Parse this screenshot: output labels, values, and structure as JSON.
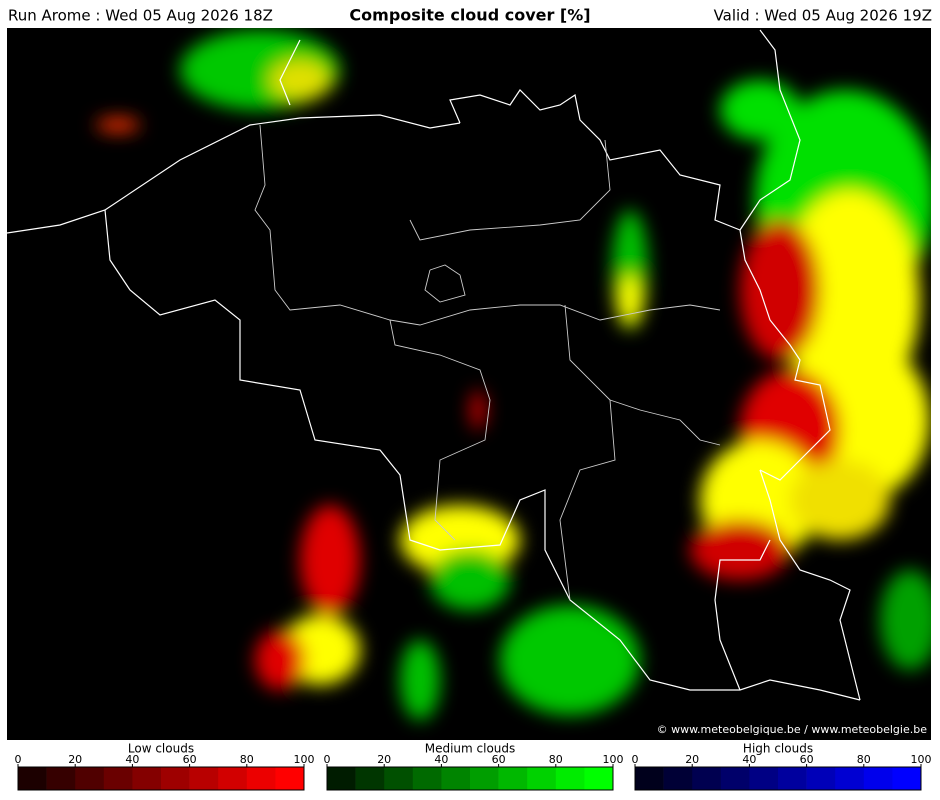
{
  "header": {
    "run": "Run Arome : Wed 05 Aug 2026 18Z",
    "title": "Composite cloud cover [%]",
    "valid": "Valid : Wed 05 Aug 2026 19Z"
  },
  "map": {
    "credit": "© www.meteobelgique.be / www.meteobelgie.be"
  },
  "legends": [
    {
      "title": "Low clouds",
      "ticks": [
        0,
        20,
        40,
        60,
        80,
        100
      ],
      "colors": [
        "#1c0000",
        "#360000",
        "#500000",
        "#6a0000",
        "#840000",
        "#9e0000",
        "#b80000",
        "#d20000",
        "#ec0000",
        "#ff0000"
      ]
    },
    {
      "title": "Medium clouds",
      "ticks": [
        0,
        20,
        40,
        60,
        80,
        100
      ],
      "colors": [
        "#001c00",
        "#003600",
        "#005000",
        "#006a00",
        "#008400",
        "#009e00",
        "#00b800",
        "#00d200",
        "#00ec00",
        "#00ff00"
      ]
    },
    {
      "title": "High clouds",
      "ticks": [
        0,
        20,
        40,
        60,
        80,
        100
      ],
      "colors": [
        "#00001c",
        "#000036",
        "#000050",
        "#00006a",
        "#000084",
        "#00009e",
        "#0000b8",
        "#0000d2",
        "#0000ec",
        "#0000ff"
      ]
    }
  ]
}
